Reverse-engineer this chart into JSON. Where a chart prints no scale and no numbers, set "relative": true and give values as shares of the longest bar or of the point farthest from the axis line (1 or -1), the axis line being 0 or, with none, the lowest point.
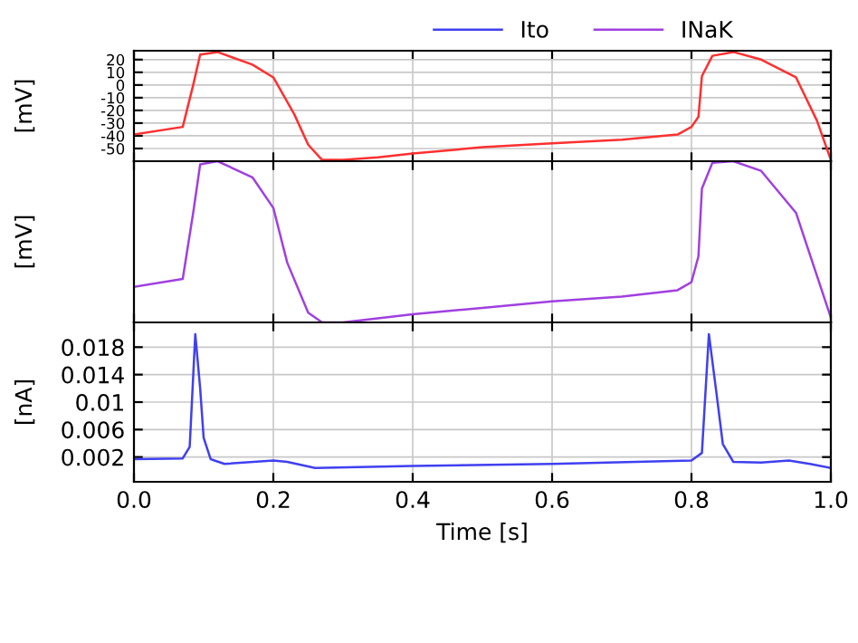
{
  "chart_data": [
    {
      "type": "line",
      "ylabel": "[mV]",
      "xlim": [
        0,
        1
      ],
      "xticks": [
        0,
        0.2,
        0.4,
        0.6,
        0.8,
        1
      ],
      "ylim": [
        -60,
        27
      ],
      "yticks": [
        20,
        10,
        0,
        -10,
        -20,
        -30,
        -40,
        -50
      ],
      "grid": true,
      "tick_labels": "y",
      "series": [
        {
          "color": "#ff3030",
          "x": [
            0,
            0.07,
            0.085,
            0.095,
            0.12,
            0.17,
            0.2,
            0.23,
            0.25,
            0.27,
            0.3,
            0.35,
            0.4,
            0.5,
            0.6,
            0.7,
            0.78,
            0.8,
            0.81,
            0.815,
            0.83,
            0.86,
            0.9,
            0.95,
            0.98,
            1.0
          ],
          "values": [
            -39,
            -33,
            0,
            24,
            26,
            16,
            6,
            -23,
            -47,
            -59,
            -59,
            -57,
            -54,
            -49,
            -46,
            -43,
            -39,
            -33,
            -25,
            7,
            23,
            26,
            20,
            6,
            -28,
            -59
          ]
        }
      ]
    },
    {
      "type": "line",
      "ylabel": "[mV]",
      "xlim": [
        0,
        1
      ],
      "xticks": [
        0,
        0.2,
        0.4,
        0.6,
        0.8,
        1
      ],
      "relative": true,
      "grid": "x",
      "tick_labels": false,
      "legend": "top",
      "series": [
        {
          "name": "INaK",
          "color": "#a040e0",
          "x": [
            0,
            0.07,
            0.085,
            0.095,
            0.12,
            0.17,
            0.2,
            0.22,
            0.25,
            0.27,
            0.3,
            0.4,
            0.5,
            0.6,
            0.7,
            0.78,
            0.8,
            0.81,
            0.815,
            0.83,
            0.86,
            0.9,
            0.95,
            0.98,
            1.0
          ],
          "values": [
            0.22,
            0.27,
            0.68,
            0.98,
            1,
            0.9,
            0.71,
            0.37,
            0.06,
            0,
            0,
            0.05,
            0.09,
            0.13,
            0.16,
            0.2,
            0.25,
            0.41,
            0.83,
            0.99,
            1,
            0.94,
            0.68,
            0.29,
            0.03
          ]
        }
      ]
    },
    {
      "type": "line",
      "ylabel": "[nA]",
      "xlabel": "Time [s]",
      "xlim": [
        0,
        1
      ],
      "xticks": [
        {
          "value": 0,
          "label": "0.0"
        },
        0.2,
        0.4,
        0.6,
        0.8,
        {
          "value": 1,
          "label": "1.0"
        }
      ],
      "ylim": [
        -0.0016,
        0.0216
      ],
      "yticks": [
        0.002,
        0.006,
        0.01,
        0.014,
        0.018
      ],
      "grid": true,
      "legend": "top",
      "series": [
        {
          "name": "Ito",
          "color": "#4040f0",
          "x": [
            0,
            0.07,
            0.08,
            0.088,
            0.095,
            0.1,
            0.11,
            0.13,
            0.2,
            0.22,
            0.26,
            0.4,
            0.6,
            0.8,
            0.815,
            0.825,
            0.835,
            0.845,
            0.86,
            0.9,
            0.94,
            0.97,
            1.0
          ],
          "values": [
            0.0017,
            0.0018,
            0.0035,
            0.0199,
            0.012,
            0.0048,
            0.0017,
            0.001,
            0.0015,
            0.0013,
            0.0004,
            0.0007,
            0.001,
            0.0015,
            0.0026,
            0.0199,
            0.012,
            0.0039,
            0.0013,
            0.0012,
            0.0015,
            0.001,
            0.0004
          ]
        }
      ]
    }
  ]
}
